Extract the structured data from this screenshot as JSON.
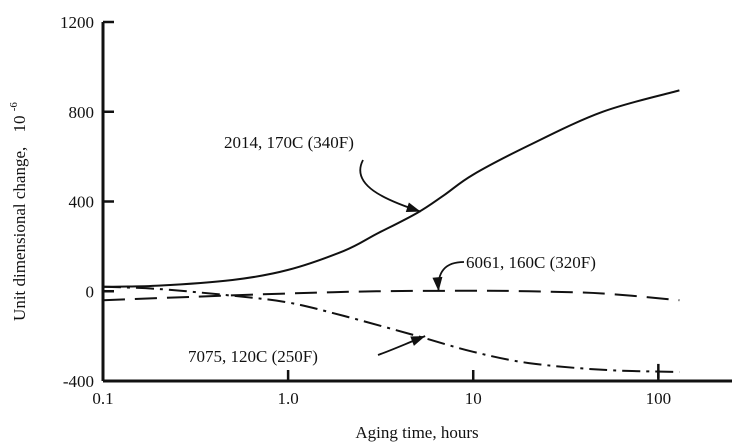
{
  "chart_data": {
    "type": "line",
    "xlabel": "Aging time,  hours",
    "ylabel": "Unit dimensional change,",
    "ylabel_unit": "10",
    "ylabel_unit_exp": "-6",
    "x_scale": "log",
    "xlim": [
      0.1,
      250
    ],
    "ylim": [
      -400,
      1200
    ],
    "x_ticks": [
      0.1,
      1.0,
      10,
      100
    ],
    "x_tick_labels": [
      "0.1",
      "1.0",
      "10",
      "100"
    ],
    "y_ticks": [
      -400,
      0,
      400,
      800,
      1200
    ],
    "y_tick_labels": [
      "-400",
      "0",
      "400",
      "800",
      "1200"
    ],
    "grid": false,
    "series": [
      {
        "name": "2014, 170C (340F)",
        "style": "solid",
        "x": [
          0.1,
          0.2,
          0.5,
          1.0,
          2.0,
          3.0,
          5.0,
          7.0,
          10,
          20,
          50,
          130
        ],
        "y": [
          20,
          25,
          50,
          95,
          180,
          255,
          350,
          430,
          520,
          650,
          800,
          895
        ]
      },
      {
        "name": "6061, 160C (320F)",
        "style": "dashed",
        "x": [
          0.1,
          0.3,
          1.0,
          3.0,
          10,
          20,
          50,
          130
        ],
        "y": [
          -40,
          -25,
          -10,
          0,
          2,
          0,
          -10,
          -40
        ]
      },
      {
        "name": "7075, 120C (250F)",
        "style": "dash-dot",
        "x": [
          0.1,
          0.2,
          0.5,
          1.0,
          2.0,
          5.0,
          10,
          20,
          50,
          130
        ],
        "y": [
          20,
          10,
          -20,
          -50,
          -110,
          -200,
          -270,
          -320,
          -350,
          -360
        ]
      }
    ],
    "annotations": [
      {
        "text": "2014, 170C (340F)",
        "series": 0,
        "arrow_to": [
          5.2,
          355
        ]
      },
      {
        "text": "6061, 160C (320F)",
        "series": 1,
        "arrow_to": [
          6.5,
          0
        ]
      },
      {
        "text": "7075, 120C (250F)",
        "series": 2,
        "arrow_to": [
          5.5,
          -200
        ]
      }
    ]
  }
}
